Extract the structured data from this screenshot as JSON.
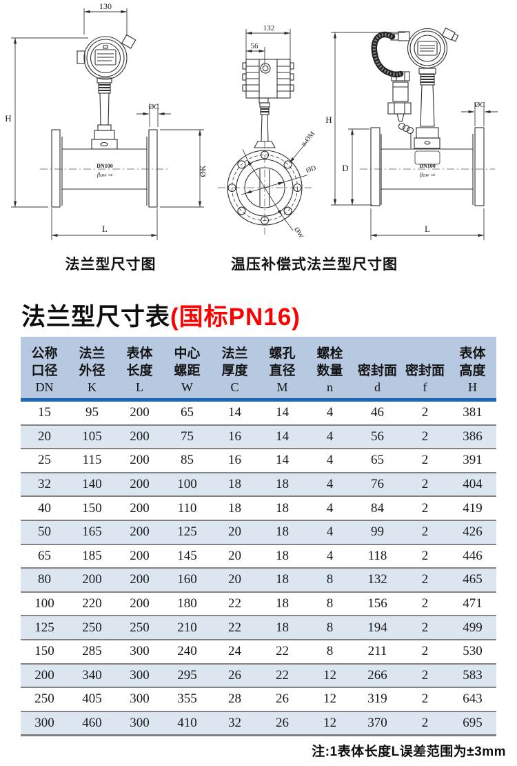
{
  "diagrams": {
    "left": {
      "caption": "法兰型尺寸图",
      "dim_width": "130",
      "dim_height": "H",
      "dim_flange_thickness": "ØC",
      "dim_flange_diameter": "ØK",
      "dim_length": "L",
      "body_label": "DN100",
      "flow_label": "flow ⇨"
    },
    "middle": {
      "dim_width": "132",
      "dim_offset": "56",
      "dim_bolt_holes": "n-ØM",
      "dim_bore": "ØD",
      "dim_bolt_circle": "ØW"
    },
    "right": {
      "caption": "温压补偿式法兰型尺寸图",
      "dim_height": "H",
      "dim_body_height": "D",
      "dim_flange_thickness": "ØC",
      "dim_length": "L",
      "body_label": "DN100",
      "flow_label": "flow ⇨"
    }
  },
  "title": {
    "main": "法兰型尺寸表",
    "highlight": "(国标PN16)",
    "highlight_color": "#fe0000"
  },
  "table": {
    "columns": [
      {
        "lines": [
          "公称",
          "口径"
        ],
        "symbol": "DN"
      },
      {
        "lines": [
          "法兰",
          "外径"
        ],
        "symbol": "K"
      },
      {
        "lines": [
          "表体",
          "长度"
        ],
        "symbol": "L"
      },
      {
        "lines": [
          "中心",
          "螺距"
        ],
        "symbol": "W"
      },
      {
        "lines": [
          "法兰",
          "厚度"
        ],
        "symbol": "C"
      },
      {
        "lines": [
          "螺孔",
          "直径"
        ],
        "symbol": "M"
      },
      {
        "lines": [
          "螺栓",
          "数量"
        ],
        "symbol": "n"
      },
      {
        "lines": [
          "密封面"
        ],
        "symbol": "d"
      },
      {
        "lines": [
          "密封面"
        ],
        "symbol": "f"
      },
      {
        "lines": [
          "表体",
          "高度"
        ],
        "symbol": "H"
      }
    ],
    "rows": [
      [
        "15",
        "95",
        "200",
        "65",
        "14",
        "14",
        "4",
        "46",
        "2",
        "381"
      ],
      [
        "20",
        "105",
        "200",
        "75",
        "16",
        "14",
        "4",
        "56",
        "2",
        "386"
      ],
      [
        "25",
        "115",
        "200",
        "85",
        "16",
        "14",
        "4",
        "65",
        "2",
        "391"
      ],
      [
        "32",
        "140",
        "200",
        "100",
        "18",
        "18",
        "4",
        "76",
        "2",
        "404"
      ],
      [
        "40",
        "150",
        "200",
        "110",
        "18",
        "18",
        "4",
        "84",
        "2",
        "419"
      ],
      [
        "50",
        "165",
        "200",
        "125",
        "20",
        "18",
        "4",
        "99",
        "2",
        "426"
      ],
      [
        "65",
        "185",
        "200",
        "145",
        "20",
        "18",
        "4",
        "118",
        "2",
        "446"
      ],
      [
        "80",
        "200",
        "200",
        "160",
        "20",
        "18",
        "8",
        "132",
        "2",
        "465"
      ],
      [
        "100",
        "220",
        "200",
        "180",
        "22",
        "18",
        "8",
        "156",
        "2",
        "471"
      ],
      [
        "125",
        "250",
        "250",
        "210",
        "22",
        "18",
        "8",
        "194",
        "2",
        "499"
      ],
      [
        "150",
        "285",
        "300",
        "240",
        "24",
        "22",
        "8",
        "211",
        "2",
        "530"
      ],
      [
        "200",
        "340",
        "300",
        "295",
        "26",
        "22",
        "12",
        "266",
        "2",
        "583"
      ],
      [
        "250",
        "405",
        "300",
        "355",
        "28",
        "26",
        "12",
        "319",
        "2",
        "643"
      ],
      [
        "300",
        "460",
        "300",
        "410",
        "32",
        "26",
        "12",
        "370",
        "2",
        "695"
      ]
    ]
  },
  "note": "注:1表体长度L误差范围为±3mm",
  "colors": {
    "header_bg": "#b7c9e1",
    "row_alt_bg": "#dce6f1",
    "header_rule": "#1b66b5",
    "row_rule": "#828282",
    "title_red": "#fe0000"
  }
}
